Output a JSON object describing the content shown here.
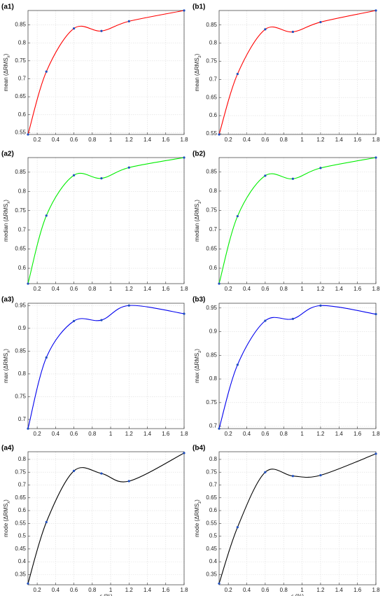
{
  "chart_data": [
    {
      "type": "line",
      "panel": "(a1)",
      "ylabel": [
        "mean (ΔRMS",
        "x",
        ")"
      ],
      "x": [
        0.1,
        0.3,
        0.6,
        0.9,
        1.2,
        1.8
      ],
      "values": [
        0.545,
        0.72,
        0.84,
        0.833,
        0.86,
        0.89
      ],
      "color": "#ff0000",
      "marker_color": "#1f4fbf",
      "xlim": [
        0.1,
        1.8
      ],
      "xticks": [
        0.2,
        0.4,
        0.6,
        0.8,
        1,
        1.2,
        1.4,
        1.6,
        1.8
      ],
      "ylim": [
        0.545,
        0.89
      ],
      "yticks": [
        0.55,
        0.6,
        0.65,
        0.7,
        0.75,
        0.8,
        0.85
      ],
      "grid": true
    },
    {
      "type": "line",
      "panel": "(b1)",
      "ylabel": [
        "mean (ΔRMS",
        "z",
        ")"
      ],
      "x": [
        0.1,
        0.3,
        0.6,
        0.9,
        1.2,
        1.8
      ],
      "values": [
        0.548,
        0.715,
        0.838,
        0.831,
        0.858,
        0.89
      ],
      "color": "#ff0000",
      "marker_color": "#1f4fbf",
      "xlim": [
        0.1,
        1.8
      ],
      "xticks": [
        0.2,
        0.4,
        0.6,
        0.8,
        1,
        1.2,
        1.4,
        1.6,
        1.8
      ],
      "ylim": [
        0.548,
        0.89
      ],
      "yticks": [
        0.55,
        0.6,
        0.65,
        0.7,
        0.75,
        0.8,
        0.85
      ],
      "grid": true
    },
    {
      "type": "line",
      "panel": "(a2)",
      "ylabel": [
        "median (ΔRMS",
        "x",
        ")"
      ],
      "x": [
        0.1,
        0.3,
        0.6,
        0.9,
        1.2,
        1.8
      ],
      "values": [
        0.56,
        0.737,
        0.842,
        0.834,
        0.862,
        0.888
      ],
      "color": "#00ee00",
      "marker_color": "#1f4fbf",
      "xlim": [
        0.1,
        1.8
      ],
      "xticks": [
        0.2,
        0.4,
        0.6,
        0.8,
        1,
        1.2,
        1.4,
        1.6,
        1.8
      ],
      "ylim": [
        0.56,
        0.888
      ],
      "yticks": [
        0.6,
        0.65,
        0.7,
        0.75,
        0.8,
        0.85
      ],
      "grid": true
    },
    {
      "type": "line",
      "panel": "(b2)",
      "ylabel": [
        "median (ΔRMS",
        "z",
        ")"
      ],
      "x": [
        0.1,
        0.3,
        0.6,
        0.9,
        1.2,
        1.8
      ],
      "values": [
        0.56,
        0.735,
        0.84,
        0.832,
        0.86,
        0.887
      ],
      "color": "#00ee00",
      "marker_color": "#1f4fbf",
      "xlim": [
        0.1,
        1.8
      ],
      "xticks": [
        0.2,
        0.4,
        0.6,
        0.8,
        1,
        1.2,
        1.4,
        1.6,
        1.8
      ],
      "ylim": [
        0.56,
        0.887
      ],
      "yticks": [
        0.6,
        0.65,
        0.7,
        0.75,
        0.8,
        0.85
      ],
      "grid": true
    },
    {
      "type": "line",
      "panel": "(a3)",
      "ylabel": [
        "max (ΔRMS",
        "x",
        ")"
      ],
      "x": [
        0.1,
        0.3,
        0.6,
        0.9,
        1.2,
        1.8
      ],
      "values": [
        0.68,
        0.836,
        0.916,
        0.918,
        0.95,
        0.932
      ],
      "color": "#0000ee",
      "marker_color": "#1f4fbf",
      "xlim": [
        0.1,
        1.8
      ],
      "xticks": [
        0.2,
        0.4,
        0.6,
        0.8,
        1,
        1.2,
        1.4,
        1.6,
        1.8
      ],
      "ylim": [
        0.68,
        0.955
      ],
      "yticks": [
        0.7,
        0.75,
        0.8,
        0.85,
        0.9,
        0.95
      ],
      "grid": true
    },
    {
      "type": "line",
      "panel": "(b3)",
      "ylabel": [
        "max (ΔRMS",
        "z",
        ")"
      ],
      "x": [
        0.1,
        0.3,
        0.6,
        0.9,
        1.2,
        1.8
      ],
      "values": [
        0.695,
        0.83,
        0.923,
        0.927,
        0.955,
        0.937
      ],
      "color": "#0000ee",
      "marker_color": "#1f4fbf",
      "xlim": [
        0.1,
        1.8
      ],
      "xticks": [
        0.2,
        0.4,
        0.6,
        0.8,
        1,
        1.2,
        1.4,
        1.6,
        1.8
      ],
      "ylim": [
        0.695,
        0.96
      ],
      "yticks": [
        0.7,
        0.75,
        0.8,
        0.85,
        0.9,
        0.95
      ],
      "grid": true
    },
    {
      "type": "line",
      "panel": "(a4)",
      "ylabel": [
        "mode (ΔRMS",
        "x",
        ")"
      ],
      "xlabel": "ϵ (%)",
      "x": [
        0.1,
        0.3,
        0.6,
        0.9,
        1.2,
        1.8
      ],
      "values": [
        0.315,
        0.555,
        0.755,
        0.745,
        0.715,
        0.825
      ],
      "color": "#000000",
      "marker_color": "#1f4fbf",
      "xlim": [
        0.1,
        1.8
      ],
      "xticks": [
        0.2,
        0.4,
        0.6,
        0.8,
        1,
        1.2,
        1.4,
        1.6,
        1.8
      ],
      "ylim": [
        0.31,
        0.83
      ],
      "yticks": [
        0.35,
        0.4,
        0.45,
        0.5,
        0.55,
        0.6,
        0.65,
        0.7,
        0.75,
        0.8
      ],
      "grid": true
    },
    {
      "type": "line",
      "panel": "(b4)",
      "ylabel": [
        "mode (ΔRMS",
        "z",
        ")"
      ],
      "xlabel": "ϵ (%)",
      "x": [
        0.1,
        0.3,
        0.6,
        0.9,
        1.2,
        1.8
      ],
      "values": [
        0.315,
        0.535,
        0.75,
        0.735,
        0.738,
        0.822
      ],
      "color": "#000000",
      "marker_color": "#1f4fbf",
      "xlim": [
        0.1,
        1.8
      ],
      "xticks": [
        0.2,
        0.4,
        0.6,
        0.8,
        1,
        1.2,
        1.4,
        1.6,
        1.8
      ],
      "ylim": [
        0.31,
        0.83
      ],
      "yticks": [
        0.35,
        0.4,
        0.45,
        0.5,
        0.55,
        0.6,
        0.65,
        0.7,
        0.75,
        0.8
      ],
      "grid": true
    }
  ]
}
